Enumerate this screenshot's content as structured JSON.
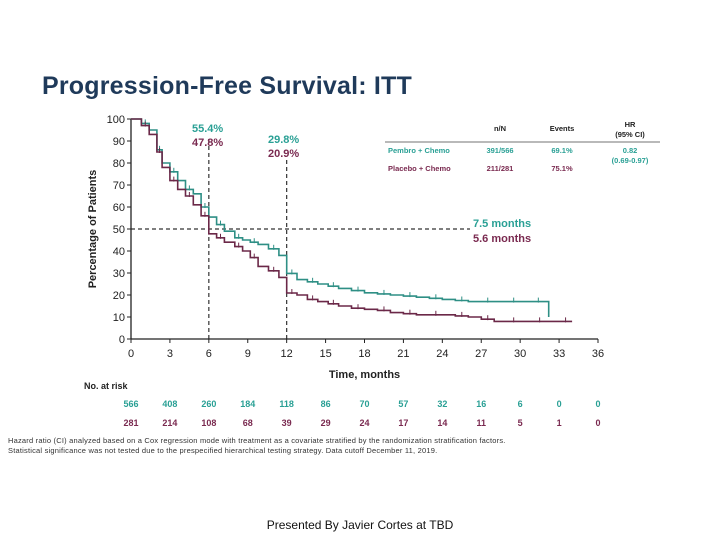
{
  "slide": {
    "title": "Progression-Free Survival: ITT",
    "footer": "Presented By Javier Cortes at TBD",
    "footnote_1": "Hazard ratio (CI) analyzed based on a Cox regression mode with treatment as a covariate stratified by the randomization stratification factors.",
    "footnote_2": "Statistical significance was not tested due to the prespecified hierarchical testing strategy. Data cutoff December 11, 2019."
  },
  "colors": {
    "pembro": "#2e8f85",
    "placebo": "#6b2848",
    "pembro_label": "#2aa095",
    "placebo_label": "#7a2a50",
    "title": "#1f3a5a"
  },
  "chart_data": {
    "type": "line",
    "title": "Progression-Free Survival: ITT",
    "xlabel": "Time, months",
    "ylabel": "Percentage of Patients",
    "xlim": [
      0,
      36
    ],
    "ylim": [
      0,
      100
    ],
    "xticks": [
      0,
      3,
      6,
      9,
      12,
      15,
      18,
      21,
      24,
      27,
      30,
      33,
      36
    ],
    "yticks": [
      0,
      10,
      20,
      30,
      40,
      50,
      60,
      70,
      80,
      90,
      100
    ],
    "series": [
      {
        "name": "Pembro + Chemo",
        "color": "#2e8f85",
        "x": [
          0,
          0.8,
          1.4,
          2.0,
          2.4,
          3.0,
          3.6,
          4.2,
          4.8,
          5.4,
          6.0,
          6.6,
          7.2,
          8.0,
          8.6,
          9.2,
          9.8,
          10.6,
          11.4,
          12.0,
          12.8,
          13.6,
          14.4,
          15.2,
          16.0,
          17.0,
          18.0,
          19.0,
          20.0,
          21.0,
          22.0,
          23.0,
          24.0,
          25.0,
          26.0,
          27.0,
          28.0,
          29.0,
          30.0,
          31.0,
          31.8,
          32.2
        ],
        "y": [
          100,
          98,
          95,
          86,
          80,
          76,
          72,
          68,
          66,
          60,
          55.4,
          52,
          49,
          46,
          45,
          44,
          43,
          41,
          38,
          29.8,
          27,
          26,
          25,
          24,
          23,
          22,
          21,
          20.5,
          20,
          19.5,
          19,
          18.5,
          18,
          17.5,
          17,
          17,
          17,
          17,
          17,
          17,
          17,
          10
        ]
      },
      {
        "name": "Placebo + Chemo",
        "color": "#6b2848",
        "x": [
          0,
          0.8,
          1.4,
          2.0,
          2.4,
          3.0,
          3.6,
          4.2,
          4.8,
          5.4,
          6.0,
          6.6,
          7.2,
          8.0,
          8.6,
          9.2,
          9.8,
          10.6,
          11.4,
          12.0,
          12.8,
          13.6,
          14.4,
          15.2,
          16.0,
          17.0,
          18.0,
          19.0,
          20.0,
          21.0,
          22.0,
          23.0,
          24.0,
          25.0,
          26.0,
          27.0,
          28.0,
          29.0,
          30.0,
          31.0,
          32.0,
          33.0,
          34.0
        ],
        "y": [
          100,
          97,
          93,
          85,
          78,
          72,
          68,
          65,
          61,
          56,
          47.8,
          46,
          44,
          42,
          40,
          37,
          33,
          31,
          28,
          20.9,
          20,
          18,
          17,
          16,
          15,
          14,
          13.5,
          13,
          12,
          11.5,
          11,
          11,
          11,
          10.5,
          10,
          9,
          8,
          8,
          8,
          8,
          8,
          8,
          8
        ]
      }
    ],
    "annotations": [
      {
        "text": "55.4%",
        "series": "Pembro + Chemo",
        "at_month": 6
      },
      {
        "text": "47.8%",
        "series": "Placebo + Chemo",
        "at_month": 6
      },
      {
        "text": "29.8%",
        "series": "Pembro + Chemo",
        "at_month": 12
      },
      {
        "text": "20.9%",
        "series": "Placebo + Chemo",
        "at_month": 12
      },
      {
        "text": "7.5 months",
        "series": "Pembro + Chemo",
        "kind": "median"
      },
      {
        "text": "5.6 months",
        "series": "Placebo + Chemo",
        "kind": "median"
      }
    ],
    "reference_lines": {
      "horizontal_y": 50,
      "vertical_x": [
        6,
        12
      ]
    },
    "legend_table": {
      "headers": [
        "n/N",
        "Events",
        "HR",
        "(95% CI)"
      ],
      "rows": [
        {
          "label": "Pembro + Chemo",
          "nN": "391/566",
          "events": "69.1%",
          "hr": "0.82",
          "ci": "(0.69-0.97)"
        },
        {
          "label": "Placebo + Chemo",
          "nN": "211/281",
          "events": "75.1%",
          "hr": "",
          "ci": ""
        }
      ]
    },
    "at_risk": {
      "label": "No. at risk",
      "times": [
        0,
        3,
        6,
        9,
        12,
        15,
        18,
        21,
        24,
        27,
        30,
        33,
        36
      ],
      "pembro": [
        "566",
        "408",
        "260",
        "184",
        "118",
        "86",
        "70",
        "57",
        "32",
        "16",
        "6",
        "0",
        "0"
      ],
      "placebo": [
        "281",
        "214",
        "108",
        "68",
        "39",
        "29",
        "24",
        "17",
        "14",
        "11",
        "5",
        "1",
        "0"
      ]
    }
  }
}
